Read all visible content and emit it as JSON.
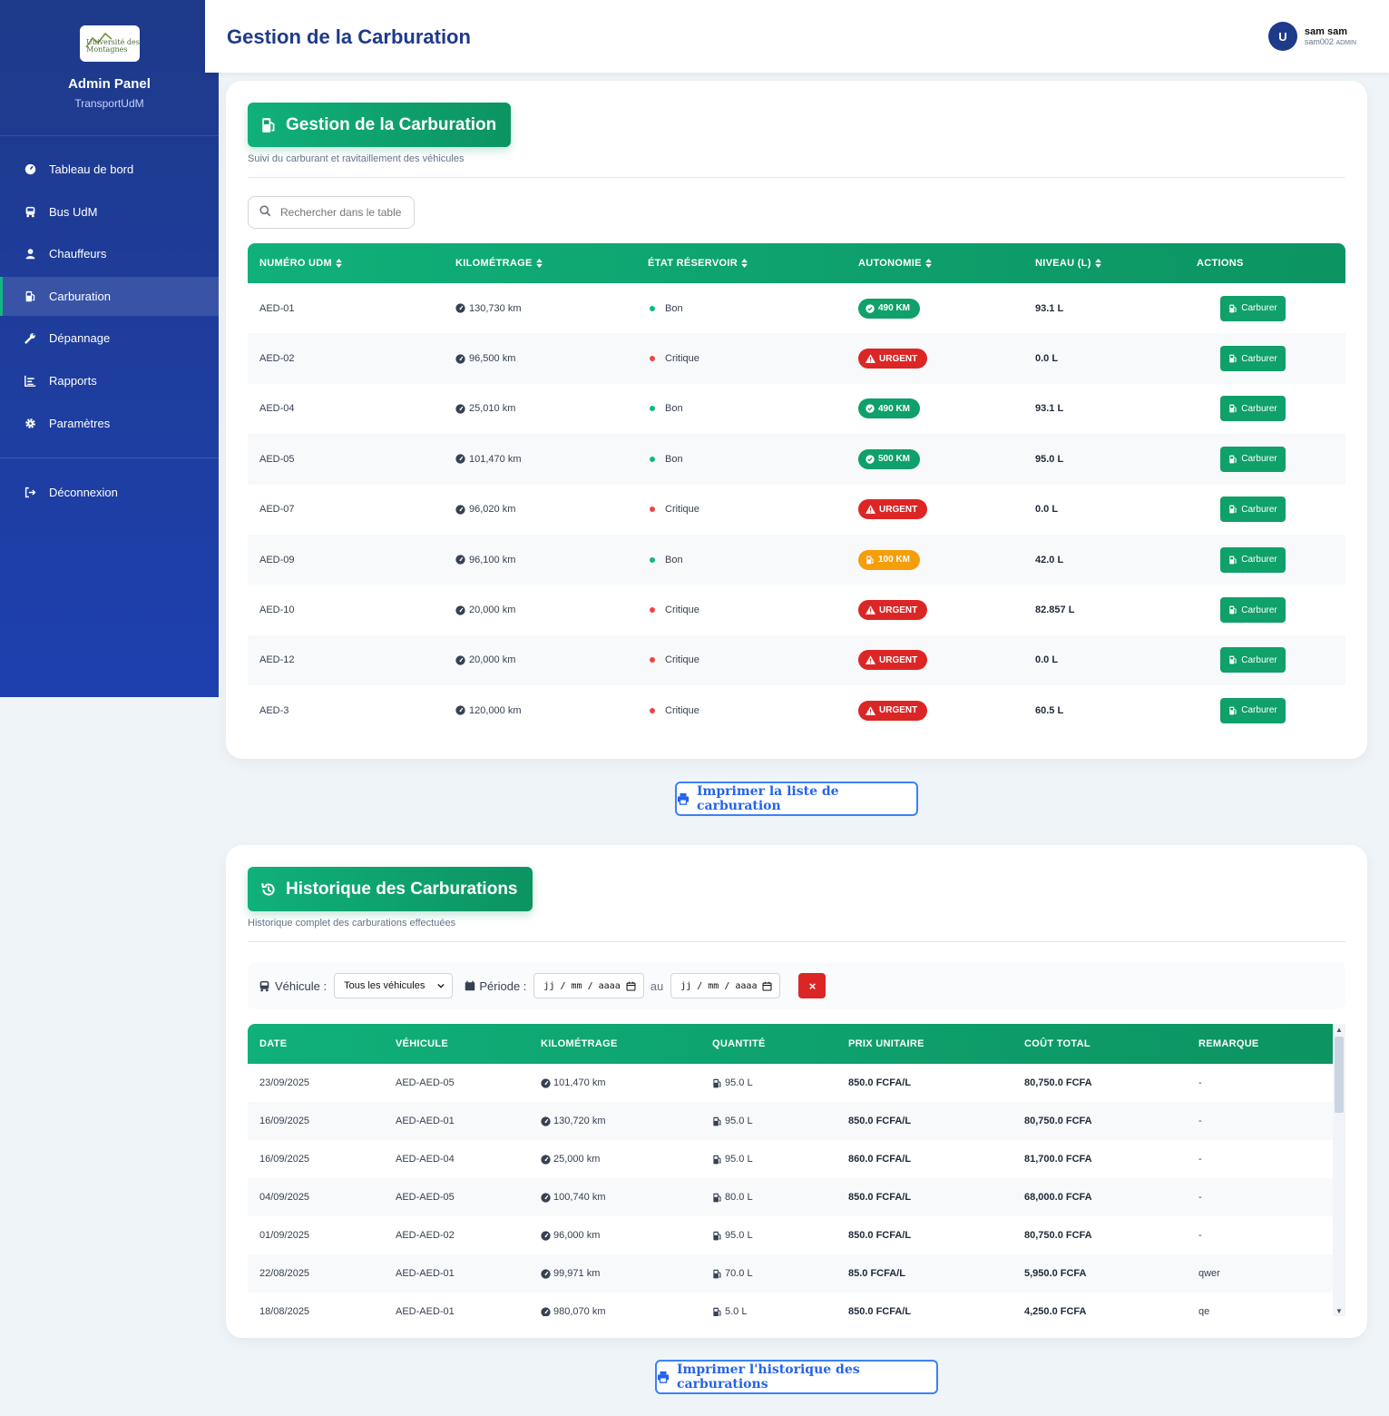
{
  "sidebar": {
    "logo_text_1": "Université des",
    "logo_text_2": "Montagnes",
    "title": "Admin Panel",
    "subtitle": "TransportUdM",
    "items": [
      {
        "label": "Tableau de bord",
        "icon": "dashboard-icon"
      },
      {
        "label": "Bus UdM",
        "icon": "bus-icon"
      },
      {
        "label": "Chauffeurs",
        "icon": "user-icon"
      },
      {
        "label": "Carburation",
        "icon": "gas-pump-icon",
        "active": true
      },
      {
        "label": "Dépannage",
        "icon": "wrench-icon"
      },
      {
        "label": "Rapports",
        "icon": "chart-icon"
      },
      {
        "label": "Paramètres",
        "icon": "gear-icon"
      }
    ],
    "logout": "Déconnexion"
  },
  "topbar": {
    "title": "Gestion de la Carburation",
    "avatar_letter": "U",
    "user_name": "sam sam",
    "user_id": "sam002",
    "user_role": "ADMIN"
  },
  "fuel": {
    "title": "Gestion de la Carburation",
    "subtitle": "Suivi du carburant et ravitaillement des véhicules",
    "search_placeholder": "Rechercher dans le tableau...",
    "columns": [
      "Numéro UdM",
      "Kilométrage",
      "État Réservoir",
      "Autonomie",
      "Niveau (L)",
      "Actions"
    ],
    "action_label": "Carburer",
    "rows": [
      {
        "num": "AED-01",
        "km": "130,730 km",
        "state": "Bon",
        "autonomy": "490 KM",
        "autonomy_type": "ok",
        "level": "93.1 L"
      },
      {
        "num": "AED-02",
        "km": "96,500 km",
        "state": "Critique",
        "autonomy": "URGENT",
        "autonomy_type": "urgent",
        "level": "0.0 L"
      },
      {
        "num": "AED-04",
        "km": "25,010 km",
        "state": "Bon",
        "autonomy": "490 KM",
        "autonomy_type": "ok",
        "level": "93.1 L"
      },
      {
        "num": "AED-05",
        "km": "101,470 km",
        "state": "Bon",
        "autonomy": "500 KM",
        "autonomy_type": "ok",
        "level": "95.0 L"
      },
      {
        "num": "AED-07",
        "km": "96,020 km",
        "state": "Critique",
        "autonomy": "URGENT",
        "autonomy_type": "urgent",
        "level": "0.0 L"
      },
      {
        "num": "AED-09",
        "km": "96,100 km",
        "state": "Bon",
        "autonomy": "100 KM",
        "autonomy_type": "warn",
        "level": "42.0 L"
      },
      {
        "num": "AED-10",
        "km": "20,000 km",
        "state": "Critique",
        "autonomy": "URGENT",
        "autonomy_type": "urgent",
        "level": "82.857 L"
      },
      {
        "num": "AED-12",
        "km": "20,000 km",
        "state": "Critique",
        "autonomy": "URGENT",
        "autonomy_type": "urgent",
        "level": "0.0 L"
      },
      {
        "num": "AED-3",
        "km": "120,000 km",
        "state": "Critique",
        "autonomy": "URGENT",
        "autonomy_type": "urgent",
        "level": "60.5 L"
      }
    ],
    "print_label": "Imprimer la liste de carburation"
  },
  "history": {
    "title": "Historique des Carburations",
    "subtitle": "Historique complet des carburations effectuées",
    "filter_vehicle_label": "Véhicule :",
    "filter_vehicle_value": "Tous les véhicules",
    "filter_period_label": "Période :",
    "date_placeholder": "jj / mm / aaaa",
    "filter_to": "au",
    "clear_label": "×",
    "columns": [
      "Date",
      "Véhicule",
      "Kilométrage",
      "Quantité",
      "Prix unitaire",
      "Coût total",
      "Remarque"
    ],
    "rows": [
      {
        "date": "23/09/2025",
        "vehicle": "AED-AED-05",
        "km": "101,470 km",
        "qty": "95.0 L",
        "price": "850.0 FCFA/L",
        "total": "80,750.0 FCFA",
        "note": "-"
      },
      {
        "date": "16/09/2025",
        "vehicle": "AED-AED-01",
        "km": "130,720 km",
        "qty": "95.0 L",
        "price": "850.0 FCFA/L",
        "total": "80,750.0 FCFA",
        "note": "-"
      },
      {
        "date": "16/09/2025",
        "vehicle": "AED-AED-04",
        "km": "25,000 km",
        "qty": "95.0 L",
        "price": "860.0 FCFA/L",
        "total": "81,700.0 FCFA",
        "note": "-"
      },
      {
        "date": "04/09/2025",
        "vehicle": "AED-AED-05",
        "km": "100,740 km",
        "qty": "80.0 L",
        "price": "850.0 FCFA/L",
        "total": "68,000.0 FCFA",
        "note": "-"
      },
      {
        "date": "01/09/2025",
        "vehicle": "AED-AED-02",
        "km": "96,000 km",
        "qty": "95.0 L",
        "price": "850.0 FCFA/L",
        "total": "80,750.0 FCFA",
        "note": "-"
      },
      {
        "date": "22/08/2025",
        "vehicle": "AED-AED-01",
        "km": "99,971 km",
        "qty": "70.0 L",
        "price": "85.0 FCFA/L",
        "total": "5,950.0 FCFA",
        "note": "qwer"
      },
      {
        "date": "18/08/2025",
        "vehicle": "AED-AED-01",
        "km": "980,070 km",
        "qty": "5.0 L",
        "price": "850.0 FCFA/L",
        "total": "4,250.0 FCFA",
        "note": "qe"
      }
    ],
    "print_label": "Imprimer l'historique des carburations"
  },
  "colors": {
    "primary": "#1e3a8a",
    "accent": "#10a06a",
    "danger": "#dc2626",
    "warning": "#f59e0b",
    "success_dot": "#10b981",
    "danger_dot": "#ef4444"
  }
}
